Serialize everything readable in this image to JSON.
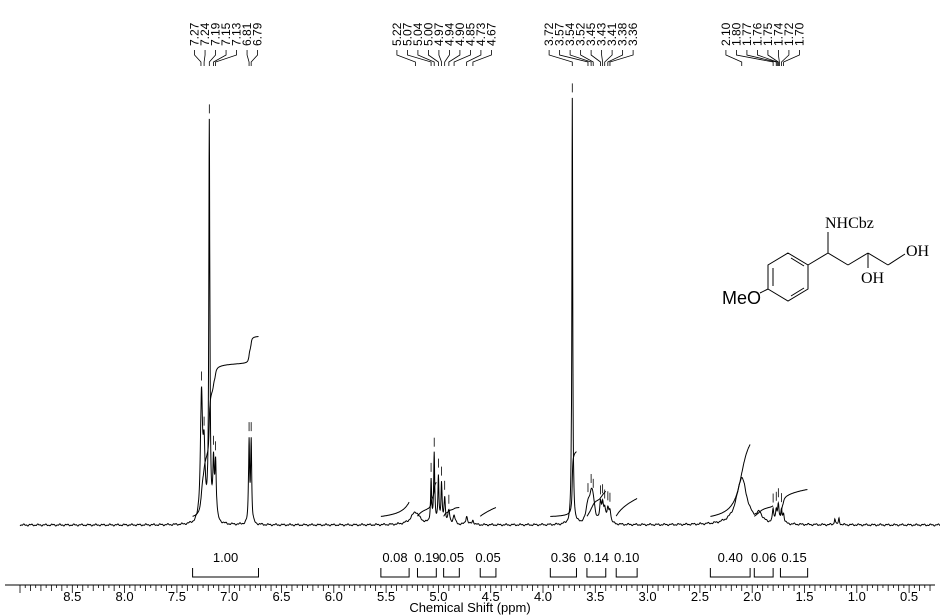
{
  "chart_data": {
    "type": "line",
    "title": "",
    "xlabel": "Chemical Shift (ppm)",
    "ylabel": "",
    "x_reversed": true,
    "xlim": [
      9.0,
      0.2
    ],
    "ylim": [
      0,
      1.05
    ],
    "x_ticks": [
      "8.5",
      "8.0",
      "7.5",
      "7.0",
      "6.5",
      "6.0",
      "5.5",
      "5.0",
      "4.5",
      "4.0",
      "3.5",
      "3.0",
      "2.5",
      "2.0",
      "1.5",
      "1.0",
      "0.5"
    ],
    "peak_labels": [
      {
        "label": "7.27",
        "ppm": 7.27
      },
      {
        "label": "7.24",
        "ppm": 7.24
      },
      {
        "label": "7.19",
        "ppm": 7.19
      },
      {
        "label": "7.15",
        "ppm": 7.15
      },
      {
        "label": "7.13",
        "ppm": 7.13
      },
      {
        "label": "6.81",
        "ppm": 6.81
      },
      {
        "label": "6.79",
        "ppm": 6.79
      },
      {
        "label": "5.22",
        "ppm": 5.22
      },
      {
        "label": "5.07",
        "ppm": 5.07
      },
      {
        "label": "5.04",
        "ppm": 5.04
      },
      {
        "label": "5.00",
        "ppm": 5.0
      },
      {
        "label": "4.97",
        "ppm": 4.97
      },
      {
        "label": "4.94",
        "ppm": 4.94
      },
      {
        "label": "4.90",
        "ppm": 4.9
      },
      {
        "label": "4.85",
        "ppm": 4.85
      },
      {
        "label": "4.73",
        "ppm": 4.73
      },
      {
        "label": "4.67",
        "ppm": 4.67
      },
      {
        "label": "3.72",
        "ppm": 3.72
      },
      {
        "label": "3.57",
        "ppm": 3.57
      },
      {
        "label": "3.54",
        "ppm": 3.54
      },
      {
        "label": "3.52",
        "ppm": 3.52
      },
      {
        "label": "3.45",
        "ppm": 3.45
      },
      {
        "label": "3.43",
        "ppm": 3.43
      },
      {
        "label": "3.41",
        "ppm": 3.41
      },
      {
        "label": "3.38",
        "ppm": 3.38
      },
      {
        "label": "3.36",
        "ppm": 3.36
      },
      {
        "label": "2.10",
        "ppm": 2.1
      },
      {
        "label": "1.80",
        "ppm": 1.8
      },
      {
        "label": "1.77",
        "ppm": 1.77
      },
      {
        "label": "1.76",
        "ppm": 1.76
      },
      {
        "label": "1.75",
        "ppm": 1.75
      },
      {
        "label": "1.74",
        "ppm": 1.74
      },
      {
        "label": "1.72",
        "ppm": 1.72
      },
      {
        "label": "1.70",
        "ppm": 1.7
      }
    ],
    "peaks": [
      {
        "ppm": 7.265,
        "height": 0.29,
        "width": 0.012
      },
      {
        "ppm": 7.24,
        "height": 0.15,
        "width": 0.012
      },
      {
        "ppm": 7.19,
        "height": 0.93,
        "width": 0.006
      },
      {
        "ppm": 7.15,
        "height": 0.13,
        "width": 0.008
      },
      {
        "ppm": 7.13,
        "height": 0.13,
        "width": 0.008
      },
      {
        "ppm": 6.81,
        "height": 0.19,
        "width": 0.006
      },
      {
        "ppm": 6.79,
        "height": 0.19,
        "width": 0.006
      },
      {
        "ppm": 5.22,
        "height": 0.03,
        "width": 0.05
      },
      {
        "ppm": 5.07,
        "height": 0.1,
        "width": 0.006
      },
      {
        "ppm": 5.04,
        "height": 0.16,
        "width": 0.006
      },
      {
        "ppm": 5.0,
        "height": 0.11,
        "width": 0.006
      },
      {
        "ppm": 4.97,
        "height": 0.09,
        "width": 0.006
      },
      {
        "ppm": 4.94,
        "height": 0.06,
        "width": 0.008
      },
      {
        "ppm": 4.9,
        "height": 0.03,
        "width": 0.01
      },
      {
        "ppm": 4.85,
        "height": 0.02,
        "width": 0.012
      },
      {
        "ppm": 4.73,
        "height": 0.02,
        "width": 0.01
      },
      {
        "ppm": 4.67,
        "height": 0.01,
        "width": 0.01
      },
      {
        "ppm": 3.72,
        "height": 1.0,
        "width": 0.005
      },
      {
        "ppm": 3.57,
        "height": 0.04,
        "width": 0.02
      },
      {
        "ppm": 3.54,
        "height": 0.05,
        "width": 0.02
      },
      {
        "ppm": 3.52,
        "height": 0.04,
        "width": 0.02
      },
      {
        "ppm": 3.45,
        "height": 0.04,
        "width": 0.01
      },
      {
        "ppm": 3.43,
        "height": 0.04,
        "width": 0.01
      },
      {
        "ppm": 3.41,
        "height": 0.03,
        "width": 0.01
      },
      {
        "ppm": 3.38,
        "height": 0.03,
        "width": 0.01
      },
      {
        "ppm": 3.36,
        "height": 0.03,
        "width": 0.01
      },
      {
        "ppm": 2.1,
        "height": 0.11,
        "width": 0.06
      },
      {
        "ppm": 1.93,
        "height": 0.02,
        "width": 0.03
      },
      {
        "ppm": 1.8,
        "height": 0.03,
        "width": 0.008
      },
      {
        "ppm": 1.77,
        "height": 0.03,
        "width": 0.008
      },
      {
        "ppm": 1.75,
        "height": 0.04,
        "width": 0.008
      },
      {
        "ppm": 1.72,
        "height": 0.03,
        "width": 0.008
      },
      {
        "ppm": 1.7,
        "height": 0.02,
        "width": 0.008
      },
      {
        "ppm": 1.21,
        "height": 0.015,
        "width": 0.006
      },
      {
        "ppm": 1.17,
        "height": 0.015,
        "width": 0.006
      }
    ],
    "integrals": [
      {
        "label": "1.00",
        "from": 7.35,
        "to": 6.72
      },
      {
        "label": "0.08",
        "from": 5.55,
        "to": 5.28
      },
      {
        "label": "0.19",
        "from": 5.2,
        "to": 5.02
      },
      {
        "label": "0.05",
        "from": 4.95,
        "to": 4.8
      },
      {
        "label": "0.05",
        "from": 4.6,
        "to": 4.45
      },
      {
        "label": "0.36",
        "from": 3.93,
        "to": 3.68
      },
      {
        "label": "0.14",
        "from": 3.58,
        "to": 3.4
      },
      {
        "label": "0.10",
        "from": 3.3,
        "to": 3.1
      },
      {
        "label": "0.40",
        "from": 2.4,
        "to": 2.02
      },
      {
        "label": "0.06",
        "from": 1.98,
        "to": 1.8
      },
      {
        "label": "0.15",
        "from": 1.73,
        "to": 1.47
      }
    ],
    "structure": {
      "substituent_top": "NHCbz",
      "substituent_mid": "OH",
      "substituent_end": "OH",
      "substituent_left": "MeO"
    }
  }
}
